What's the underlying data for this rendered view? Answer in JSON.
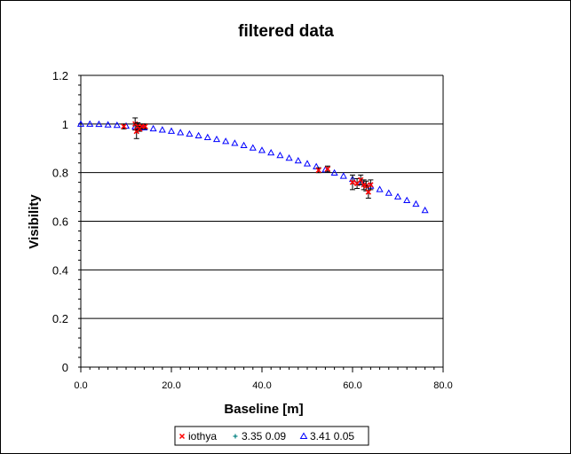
{
  "chart_data": {
    "type": "scatter",
    "title": "filtered data",
    "xlabel": "Baseline [m]",
    "ylabel": "Visibility",
    "xlim": [
      0,
      80
    ],
    "ylim": [
      0,
      1.2
    ],
    "x_ticks": [
      "0.0",
      "20.0",
      "40.0",
      "60.0",
      "80.0"
    ],
    "y_ticks": [
      "0",
      "0.2",
      "0.4",
      "0.6",
      "0.8",
      "1",
      "1.2"
    ],
    "grid": "horizontal",
    "legend_position": "bottom",
    "colors": {
      "iothya": "#ff0000",
      "model_a": "#008080",
      "model_b": "#0000ff",
      "error_bar": "#000000"
    },
    "series": [
      {
        "name": "iothya",
        "marker": "x",
        "x": [
          9.5,
          12.0,
          12.3,
          12.6,
          13.0,
          13.5,
          14.2,
          52.5,
          54.5,
          60.0,
          61.0,
          61.8,
          62.5,
          63.0,
          63.5,
          64.0
        ],
        "y": [
          0.99,
          1.0,
          0.97,
          0.99,
          0.98,
          0.99,
          0.99,
          0.81,
          0.815,
          0.76,
          0.755,
          0.77,
          0.75,
          0.745,
          0.72,
          0.75
        ],
        "err": [
          0.01,
          0.025,
          0.03,
          0.015,
          0.01,
          0.01,
          0.01,
          0.01,
          0.012,
          0.03,
          0.02,
          0.02,
          0.02,
          0.02,
          0.025,
          0.02
        ]
      },
      {
        "name": "3.35 0.09",
        "marker": "plus",
        "x": [],
        "y": []
      },
      {
        "name": "3.41 0.05",
        "marker": "triangle",
        "x": [
          0,
          2,
          4,
          6,
          8,
          10,
          12,
          14,
          16,
          18,
          20,
          22,
          24,
          26,
          28,
          30,
          32,
          34,
          36,
          38,
          40,
          42,
          44,
          46,
          48,
          50,
          52,
          54,
          56,
          58,
          60,
          62,
          64,
          66,
          68,
          70,
          72,
          74,
          76
        ],
        "y": [
          1.0,
          1.0,
          0.999,
          0.997,
          0.995,
          0.992,
          0.989,
          0.985,
          0.981,
          0.976,
          0.971,
          0.965,
          0.959,
          0.952,
          0.945,
          0.937,
          0.929,
          0.921,
          0.912,
          0.902,
          0.892,
          0.882,
          0.871,
          0.86,
          0.849,
          0.837,
          0.825,
          0.812,
          0.799,
          0.786,
          0.773,
          0.759,
          0.745,
          0.731,
          0.716,
          0.701,
          0.686,
          0.671,
          0.645
        ]
      }
    ]
  }
}
